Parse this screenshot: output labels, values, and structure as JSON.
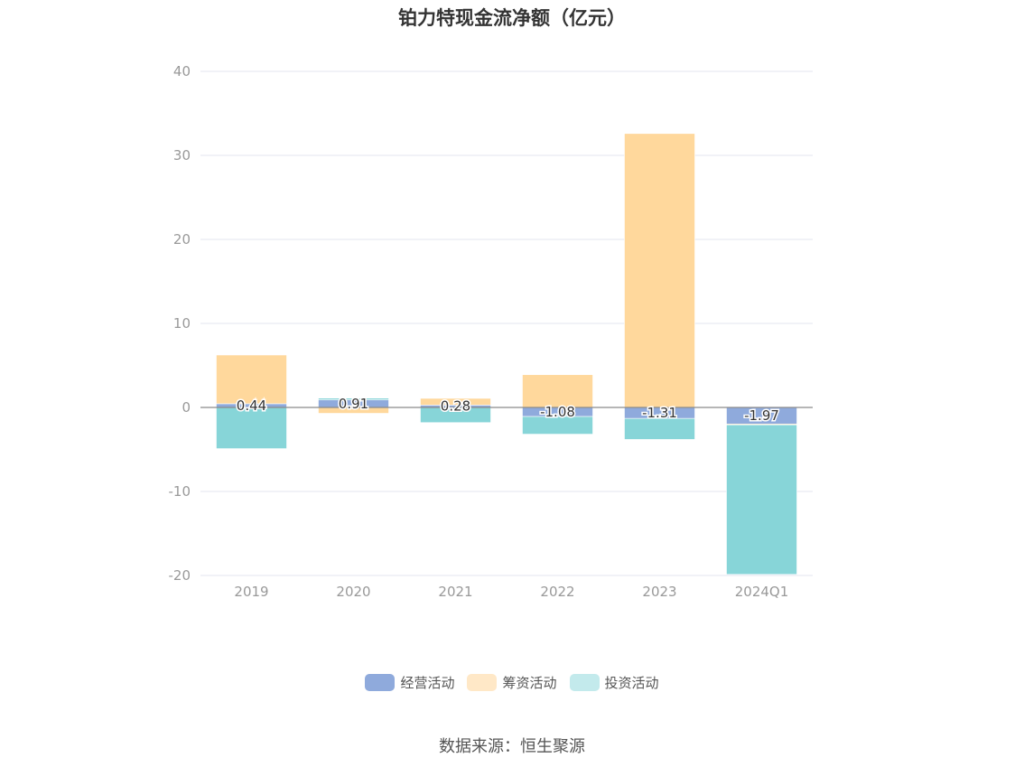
{
  "colors": {
    "operating": "#8faadc",
    "financing": "#ffd89c",
    "investing": "#87d5d8",
    "financing_legend": "#ffe8c7",
    "investing_legend": "#c3eaec",
    "grid": "#e3e6ef",
    "zero_line": "#8a8a8a",
    "axis_text": "#999999"
  },
  "legend": [
    {
      "label": "经营活动",
      "color_key": "operating"
    },
    {
      "label": "筹资活动",
      "color_key": "financing_legend"
    },
    {
      "label": "投资活动",
      "color_key": "investing_legend"
    }
  ],
  "source": "数据来源：恒生聚源",
  "chart_data": {
    "type": "bar",
    "stacked": true,
    "title": "铂力特现金流净额（亿元）",
    "categories": [
      "2019",
      "2020",
      "2021",
      "2022",
      "2023",
      "2024Q1"
    ],
    "ylim": [
      -20,
      40
    ],
    "yticks": [
      40,
      30,
      20,
      10,
      0,
      -10,
      -20
    ],
    "grid": true,
    "legend_position": "bottom",
    "series": [
      {
        "name": "经营活动",
        "color_key": "operating",
        "values": [
          0.44,
          0.91,
          0.28,
          -1.08,
          -1.31,
          -1.97
        ],
        "show_labels": true
      },
      {
        "name": "筹资活动",
        "color_key": "financing",
        "values": [
          5.8,
          -0.7,
          0.8,
          3.9,
          32.6,
          -0.1
        ]
      },
      {
        "name": "投资活动",
        "color_key": "investing",
        "values": [
          -4.9,
          0.2,
          -1.8,
          -2.1,
          -2.5,
          -17.8
        ]
      }
    ],
    "data_labels": [
      "0.44",
      "0.91",
      "0.28",
      "-1.08",
      "-1.31",
      "-1.97"
    ]
  }
}
